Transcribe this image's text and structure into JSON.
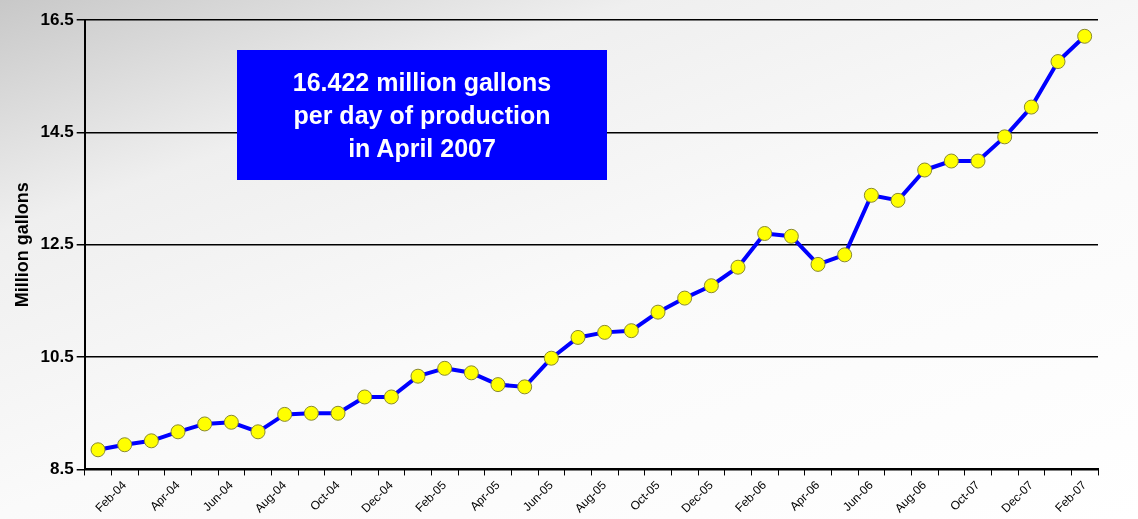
{
  "chart_data": {
    "type": "line",
    "ylabel": "Million gallons",
    "annotations": [
      "16.422 million gallons per day of production in April 2007"
    ],
    "categories": [
      null,
      "Feb-04",
      null,
      "Apr-04",
      null,
      "Jun-04",
      null,
      "Aug-04",
      null,
      "Oct-04",
      null,
      "Dec-04",
      null,
      "Feb-05",
      null,
      "Apr-05",
      null,
      "Jun-05",
      null,
      "Aug-05",
      null,
      "Oct-05",
      null,
      "Dec-05",
      null,
      "Feb-06",
      null,
      "Apr-06",
      null,
      "Jun-06",
      null,
      "Aug-06",
      null,
      "Oct-07",
      null,
      "Dec-07",
      null,
      "Feb-07"
    ],
    "series": [
      {
        "color": "#0000ff",
        "values": [
          8.85,
          8.94,
          9.01,
          9.17,
          9.31,
          9.34,
          9.17,
          9.48,
          9.5,
          9.5,
          9.79,
          9.79,
          10.16,
          10.3,
          10.22,
          10.01,
          9.97,
          10.48,
          10.85,
          10.94,
          10.97,
          11.3,
          11.55,
          11.77,
          12.1,
          12.7,
          12.65,
          12.15,
          12.32,
          13.38,
          13.29,
          13.83,
          13.99,
          13.99,
          14.42,
          14.95,
          15.76,
          16.21
        ]
      }
    ],
    "ylim": [
      8.5,
      16.5
    ],
    "yticks": [
      8.5,
      10.5,
      12.5,
      14.5,
      16.5
    ],
    "grid": "y",
    "legend": false,
    "marker": "circle",
    "line_style": "solid"
  }
}
